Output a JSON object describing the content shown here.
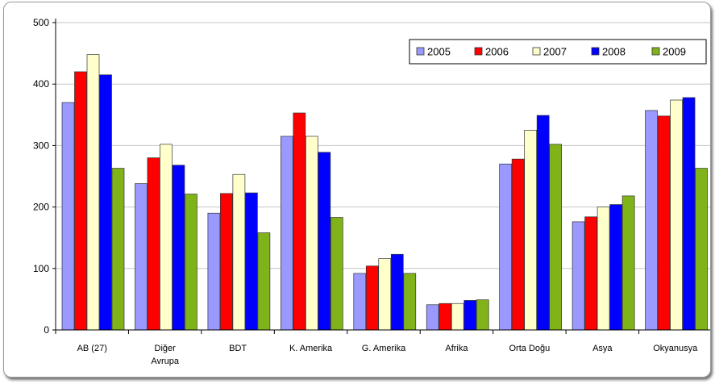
{
  "chart_data": {
    "type": "bar",
    "categories": [
      "AB (27)",
      "Diğer Avrupa",
      "BDT",
      "K. Amerika",
      "G. Amerika",
      "Afrika",
      "Orta Doğu",
      "Asya",
      "Okyanusya"
    ],
    "category_lines": [
      [
        "AB (27)"
      ],
      [
        "Diğer",
        "Avrupa"
      ],
      [
        "BDT"
      ],
      [
        "K. Amerika"
      ],
      [
        "G. Amerika"
      ],
      [
        "Afrika"
      ],
      [
        "Orta Doğu"
      ],
      [
        "Asya"
      ],
      [
        "Okyanusya"
      ]
    ],
    "series": [
      {
        "name": "2005",
        "color": "#9999ff",
        "values": [
          370,
          238,
          190,
          315,
          92,
          41,
          270,
          176,
          357
        ]
      },
      {
        "name": "2006",
        "color": "#ff0000",
        "values": [
          420,
          280,
          222,
          353,
          104,
          43,
          278,
          184,
          348
        ]
      },
      {
        "name": "2007",
        "color": "#ffffcc",
        "values": [
          448,
          302,
          253,
          315,
          116,
          43,
          325,
          200,
          374
        ]
      },
      {
        "name": "2008",
        "color": "#0000ff",
        "values": [
          415,
          268,
          223,
          289,
          123,
          48,
          349,
          204,
          378
        ]
      },
      {
        "name": "2009",
        "color": "#80b21a",
        "values": [
          263,
          221,
          158,
          183,
          92,
          49,
          302,
          218,
          263
        ]
      }
    ],
    "yticks": [
      0,
      100,
      200,
      300,
      400,
      500
    ],
    "ylim": [
      0,
      500
    ],
    "grid": true,
    "legend_position": "top-right"
  }
}
